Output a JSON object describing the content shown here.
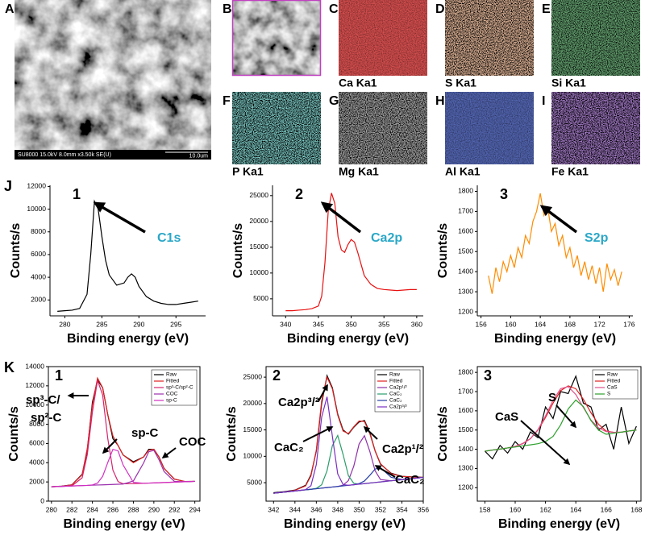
{
  "sem_image": {
    "letter": "A",
    "info": "SU8000 15.0kV 8.0mm x3.50k SE(U)",
    "scale_bar": "10.0um"
  },
  "element_maps": [
    {
      "letter": "B"
    },
    {
      "letter": "C",
      "caption": "Ca Ka1"
    },
    {
      "letter": "D",
      "caption": "S Ka1"
    },
    {
      "letter": "E",
      "caption": "Si Ka1"
    },
    {
      "letter": "F",
      "caption": "P Ka1"
    },
    {
      "letter": "G",
      "caption": "Mg Ka1"
    },
    {
      "letter": "H",
      "caption": "Al Ka1"
    },
    {
      "letter": "I",
      "caption": "Fe Ka1"
    }
  ],
  "chart_data": [
    {
      "type": "line",
      "panel": "J",
      "title": "1",
      "y_label": "Counts/s",
      "x_label": "Binding energy (eV)",
      "annotations": [
        "C1s"
      ],
      "x": [
        279,
        280,
        281,
        282,
        283,
        283.5,
        284,
        284.5,
        285,
        285.5,
        286,
        287,
        288,
        288.5,
        289,
        289.5,
        290,
        291,
        292,
        293,
        294,
        295,
        296,
        297,
        298
      ],
      "series": [
        {
          "color": "#000000",
          "values": [
            1000,
            1050,
            1100,
            1250,
            2500,
            6000,
            10700,
            10000,
            7600,
            5500,
            4200,
            3300,
            3500,
            4000,
            4300,
            4000,
            3200,
            2300,
            1900,
            1700,
            1600,
            1600,
            1700,
            1800,
            1900
          ]
        }
      ],
      "xlim": [
        278,
        299
      ],
      "xticks": [
        280,
        285,
        290,
        295
      ],
      "ylim": [
        600,
        12100
      ],
      "yticks": [
        2000,
        4000,
        6000,
        8000,
        10000,
        12000
      ],
      "box": false
    },
    {
      "type": "line",
      "title": "2",
      "y_label": "Counts/s",
      "x_label": "Binding energy (eV)",
      "annotations": [
        "Ca2p"
      ],
      "x": [
        340,
        341,
        342,
        343,
        344,
        345,
        345.5,
        346,
        346.5,
        347,
        347.5,
        348,
        348.5,
        349,
        349.5,
        350,
        350.5,
        351,
        352,
        353,
        354,
        355,
        356,
        357,
        358,
        359,
        360
      ],
      "series": [
        {
          "color": "#e81010",
          "values": [
            2700,
            2700,
            2800,
            2900,
            3100,
            3600,
            5500,
            12000,
            22000,
            25500,
            23500,
            17000,
            14500,
            14000,
            15500,
            16500,
            16000,
            14000,
            9500,
            7800,
            7000,
            6800,
            6700,
            6600,
            6700,
            6800,
            6800
          ]
        }
      ],
      "xlim": [
        338,
        361
      ],
      "xticks": [
        340,
        345,
        350,
        355,
        360
      ],
      "ylim": [
        1700,
        27000
      ],
      "yticks": [
        5000,
        10000,
        15000,
        20000,
        25000
      ],
      "box": false
    },
    {
      "type": "line",
      "title": "3",
      "y_label": "Counts/s",
      "x_label": "Binding energy (eV)",
      "annotations": [
        "S2p"
      ],
      "x": [
        157,
        157.5,
        158,
        158.5,
        159,
        159.5,
        160,
        160.5,
        161,
        161.5,
        162,
        162.5,
        163,
        163.5,
        164,
        164.5,
        165,
        165.5,
        166,
        166.5,
        167,
        167.5,
        168,
        168.5,
        169,
        169.5,
        170,
        170.5,
        171,
        171.5,
        172,
        172.5,
        173,
        173.5,
        174,
        174.5,
        175
      ],
      "series": [
        {
          "color": "#ff8c00",
          "values": [
            1380,
            1290,
            1420,
            1350,
            1450,
            1400,
            1480,
            1420,
            1520,
            1470,
            1580,
            1540,
            1650,
            1700,
            1790,
            1680,
            1720,
            1600,
            1640,
            1530,
            1580,
            1470,
            1520,
            1420,
            1480,
            1380,
            1450,
            1360,
            1430,
            1340,
            1420,
            1300,
            1440,
            1360,
            1410,
            1330,
            1400
          ]
        }
      ],
      "xlim": [
        155.5,
        176.5
      ],
      "xticks": [
        156,
        160,
        164,
        168,
        172,
        176
      ],
      "ylim": [
        1180,
        1830
      ],
      "yticks": [
        1200,
        1300,
        1400,
        1500,
        1600,
        1700,
        1800
      ],
      "box": false
    },
    {
      "type": "line",
      "panel": "K",
      "title": "1",
      "y_label": "Counts/s",
      "x_label": "Binding energy (eV)",
      "annotations": [
        "sp³-C/",
        "sp²-C",
        "sp-C",
        "COC"
      ],
      "x": [
        280,
        281,
        282,
        283,
        283.5,
        284,
        284.5,
        285,
        285.5,
        286,
        286.5,
        287,
        288,
        289,
        289.5,
        290,
        290.5,
        291,
        292,
        293,
        294
      ],
      "series": [
        {
          "name": "Raw",
          "color": "#000000",
          "values": [
            1500,
            1560,
            1700,
            2800,
            5300,
            10300,
            12600,
            11800,
            9000,
            6500,
            5800,
            4800,
            4100,
            4600,
            5400,
            5400,
            4600,
            3400,
            2300,
            2050,
            2060
          ]
        },
        {
          "name": "Fitted",
          "color": "#e02020",
          "values": [
            1500,
            1550,
            1690,
            2750,
            5500,
            10000,
            12800,
            11800,
            9000,
            6800,
            5800,
            4800,
            4000,
            4600,
            5300,
            5400,
            4600,
            3400,
            2300,
            2050,
            2060
          ]
        },
        {
          "name": "sp³-C/sp²-C",
          "color": "#d6246e",
          "values": [
            1500,
            1540,
            1590,
            2430,
            4840,
            9280,
            12570,
            11050,
            6520,
            3230,
            2040,
            1810,
            1820,
            1860,
            1880,
            1900,
            1920,
            1940,
            1980,
            2020,
            2060
          ]
        },
        {
          "name": "COC",
          "color": "#9b2fae",
          "values": [
            1500,
            1540,
            1580,
            1620,
            1640,
            1660,
            1680,
            1700,
            1720,
            1740,
            1760,
            1780,
            2100,
            3980,
            5140,
            5290,
            4310,
            3080,
            2060,
            2020,
            2060
          ]
        },
        {
          "name": "sp-C",
          "color": "#d12fc2",
          "values": [
            1500,
            1540,
            1580,
            1620,
            1640,
            1690,
            1880,
            2580,
            4020,
            5390,
            5230,
            3760,
            1960,
            1860,
            1880,
            1900,
            1920,
            1940,
            1980,
            2020,
            2060
          ]
        }
      ],
      "xlim": [
        279.7,
        294.5
      ],
      "xticks": [
        280,
        282,
        284,
        286,
        288,
        290,
        292,
        294
      ],
      "ylim": [
        0,
        14000
      ],
      "yticks": [
        0,
        2000,
        4000,
        6000,
        8000,
        10000,
        12000,
        14000
      ],
      "box": true,
      "legend": "upper right"
    },
    {
      "type": "line",
      "title": "2",
      "y_label": "Counts/s",
      "x_label": "Binding energy (eV)",
      "annotations": [
        "Ca2p³/²",
        "CaC₂",
        "Ca2p¹/²",
        "CaC₂"
      ],
      "x": [
        342,
        343,
        344,
        345,
        345.5,
        346,
        346.5,
        347,
        347.5,
        348,
        348.5,
        349,
        349.5,
        350,
        350.5,
        351,
        351.5,
        352,
        353,
        354,
        355,
        356
      ],
      "series": [
        {
          "name": "Raw",
          "color": "#000000",
          "values": [
            3100,
            3300,
            3600,
            4500,
            6500,
            11000,
            20000,
            25300,
            23000,
            18000,
            15000,
            14200,
            15500,
            16500,
            16800,
            14500,
            11000,
            8500,
            6800,
            6200,
            6100,
            6000
          ]
        },
        {
          "name": "Fitted",
          "color": "#e02020",
          "values": [
            3000,
            3250,
            3550,
            4400,
            6300,
            11200,
            20500,
            25000,
            22800,
            17800,
            14800,
            14300,
            15600,
            16700,
            16600,
            14300,
            11000,
            8600,
            6700,
            6200,
            6050,
            6000
          ]
        },
        {
          "name": "Ca2p¹/²",
          "color": "#8e2fa8",
          "values": [
            3000,
            3215,
            3430,
            3645,
            3750,
            3860,
            3970,
            4075,
            4180,
            4290,
            4530,
            5405,
            8130,
            12340,
            13915,
            10945,
            7240,
            5590,
            5365,
            5580,
            5795,
            6010
          ]
        },
        {
          "name": "CaC₂",
          "color": "#2a9d6a",
          "values": [
            3000,
            3215,
            3430,
            3645,
            3750,
            3925,
            4620,
            7255,
            12020,
            13950,
            10350,
            6325,
            4890,
            4720,
            4825,
            4935,
            5040,
            5150,
            5365,
            5580,
            5795,
            6010
          ]
        },
        {
          "name": "CaC₂",
          "color": "#2840a8",
          "values": [
            3000,
            3215,
            3430,
            3645,
            3750,
            3860,
            3970,
            4075,
            4180,
            4290,
            4400,
            4505,
            4610,
            4820,
            5325,
            6395,
            7590,
            7840,
            6010,
            5600,
            5795,
            6010
          ]
        },
        {
          "name": "Ca2p³/²",
          "color": "#7a2ec0",
          "values": [
            3000,
            3215,
            3430,
            3690,
            4440,
            8440,
            17450,
            21275,
            13800,
            6660,
            4660,
            4505,
            4610,
            4720,
            4825,
            4935,
            5040,
            5150,
            5365,
            5580,
            5795,
            6010
          ]
        }
      ],
      "xlim": [
        341.3,
        356
      ],
      "xticks": [
        342,
        344,
        346,
        348,
        350,
        352,
        354,
        356
      ],
      "ylim": [
        1500,
        27000
      ],
      "yticks": [
        5000,
        10000,
        15000,
        20000,
        25000
      ],
      "box": true,
      "legend": "upper right"
    },
    {
      "type": "line",
      "title": "3",
      "y_label": "Counts/s",
      "x_label": "Binding energy (eV)",
      "annotations": [
        "S",
        "CaS"
      ],
      "x": [
        158,
        158.5,
        159,
        159.5,
        160,
        160.5,
        161,
        161.5,
        162,
        162.5,
        163,
        163.5,
        164,
        164.5,
        165,
        165.5,
        166,
        166.5,
        167,
        167.5,
        168
      ],
      "series": [
        {
          "name": "Raw",
          "color": "#000000",
          "values": [
            1390,
            1350,
            1420,
            1380,
            1440,
            1400,
            1490,
            1460,
            1620,
            1560,
            1700,
            1690,
            1780,
            1640,
            1620,
            1500,
            1530,
            1400,
            1620,
            1430,
            1520
          ]
        },
        {
          "name": "Fitted",
          "color": "#e02020",
          "values": [
            1390,
            1396,
            1401,
            1407,
            1415,
            1430,
            1455,
            1500,
            1565,
            1640,
            1705,
            1730,
            1715,
            1660,
            1590,
            1530,
            1495,
            1488,
            1489,
            1495,
            1500
          ]
        },
        {
          "name": "CaS",
          "color": "#e0508a",
          "values": [
            1390,
            1396,
            1401,
            1407,
            1415,
            1429,
            1454,
            1502,
            1573,
            1655,
            1715,
            1726,
            1685,
            1617,
            1552,
            1511,
            1492,
            1488,
            1489,
            1495,
            1500
          ]
        },
        {
          "name": "S",
          "color": "#2ca02c",
          "values": [
            1390,
            1396,
            1401,
            1407,
            1412,
            1418,
            1423,
            1429,
            1440,
            1467,
            1527,
            1610,
            1656,
            1622,
            1549,
            1500,
            1478,
            1484,
            1489,
            1495,
            1500
          ]
        }
      ],
      "xlim": [
        157.5,
        168.3
      ],
      "xticks": [
        158,
        160,
        162,
        164,
        166,
        168
      ],
      "ylim": [
        1130,
        1830
      ],
      "yticks": [
        1200,
        1300,
        1400,
        1500,
        1600,
        1700,
        1800
      ],
      "box": true,
      "legend": "upper right"
    }
  ]
}
